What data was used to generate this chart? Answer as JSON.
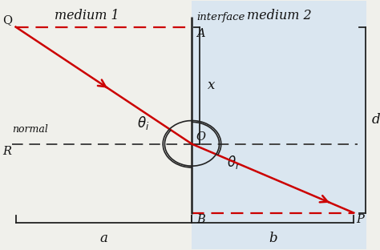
{
  "bg_left": "#f0f0eb",
  "bg_right": "#dae6f0",
  "interface_color": "#222222",
  "ray_color": "#cc0000",
  "dashed_color": "#444444",
  "line_color": "#222222",
  "text_color": "#111111",
  "medium1_label": "medium 1",
  "medium2_label": "medium 2",
  "interface_label": "interface",
  "label_a": "a",
  "label_b": "b",
  "label_x": "x",
  "label_d": "d",
  "label_normal": "normal",
  "label_Q": "Q",
  "label_A": "A",
  "label_O": "O",
  "label_R": "R",
  "label_B": "B",
  "label_P": "P",
  "xlim": [
    0,
    10
  ],
  "ylim": [
    0,
    8.5
  ],
  "interface_x": 5.2,
  "O_x": 5.2,
  "O_y": 3.6,
  "Q_x": 0.35,
  "Q_y": 7.6,
  "A_x": 5.2,
  "A_y": 7.6,
  "R_x": 0.35,
  "R_y": 3.6,
  "P_x": 9.65,
  "P_y": 1.25,
  "B_x": 5.2,
  "B_y": 1.25
}
